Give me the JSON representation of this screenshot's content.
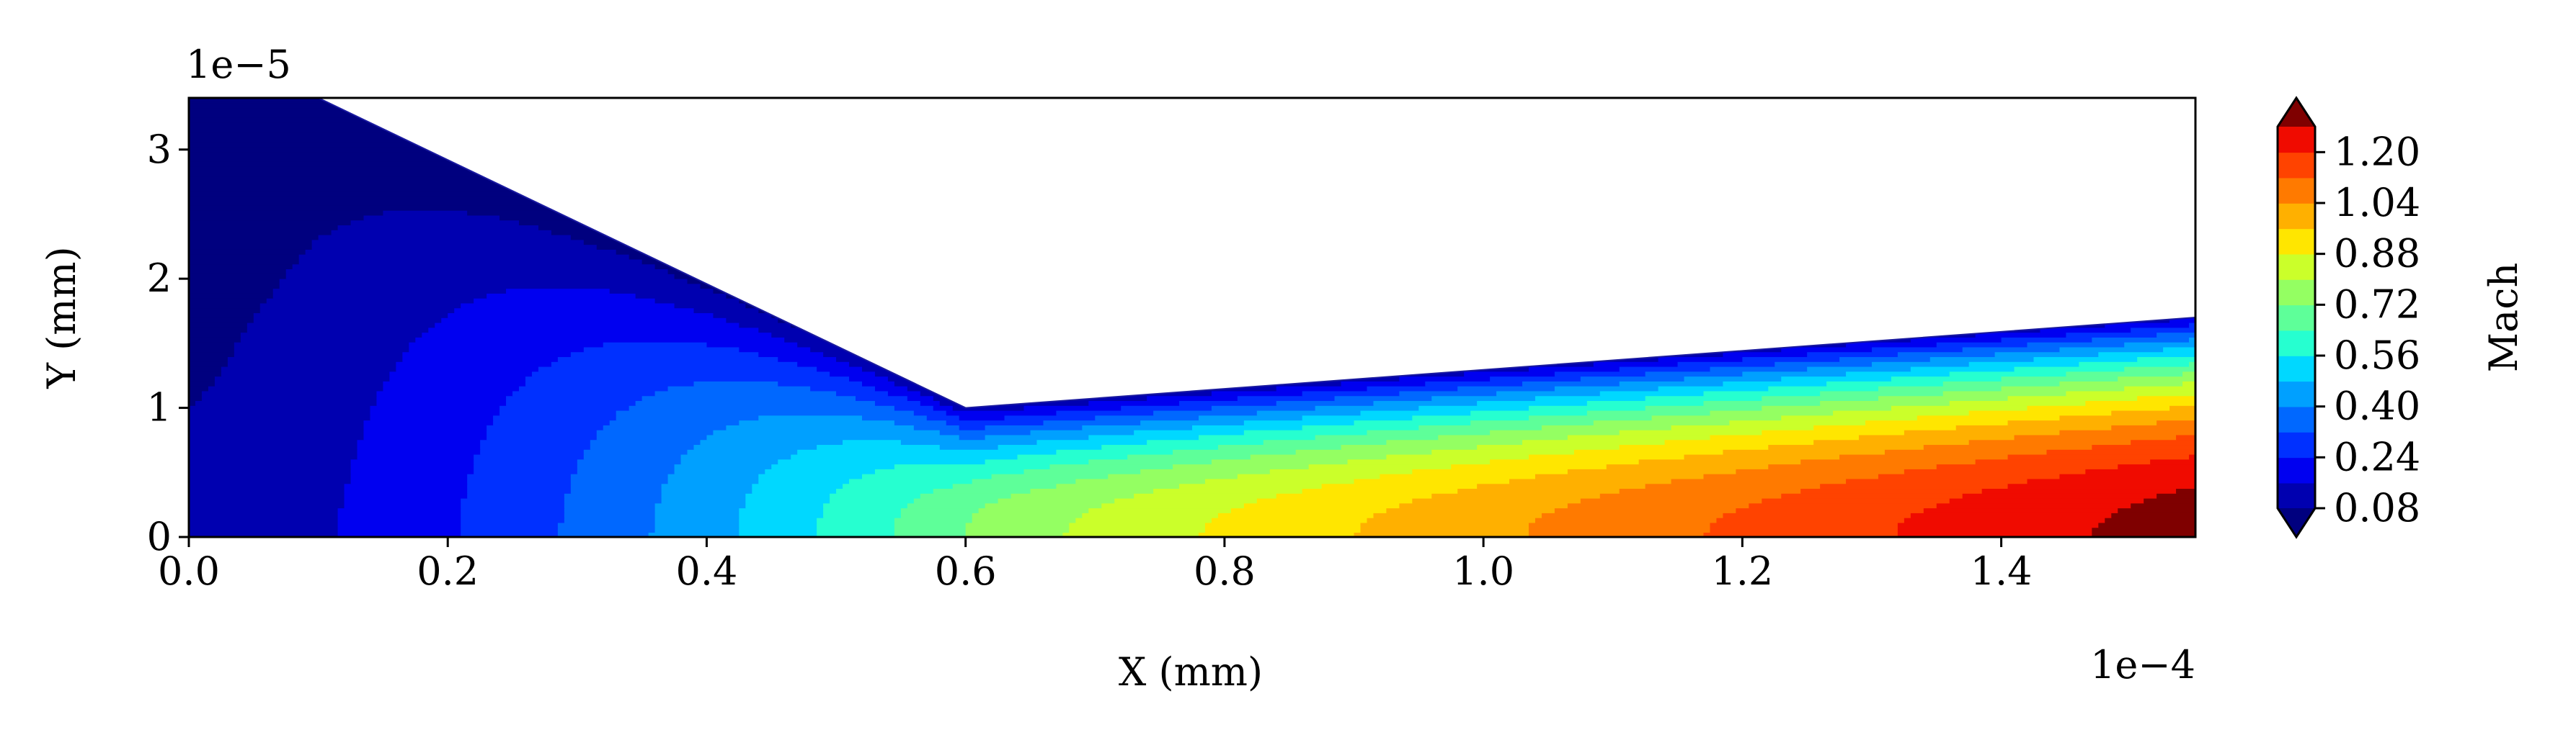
{
  "chart_data": {
    "type": "contourf",
    "xlabel": "X (mm)",
    "ylabel": "Y (mm)",
    "x_offset_label": "1e−4",
    "y_offset_label": "1e−5",
    "x_scale": 0.0001,
    "y_scale": 1e-05,
    "xlim": [
      0,
      1.55
    ],
    "ylim": [
      0,
      3.4
    ],
    "x_ticks": [
      0.0,
      0.2,
      0.4,
      0.6,
      0.8,
      1.0,
      1.2,
      1.4
    ],
    "x_tick_labels": [
      "0.0",
      "0.2",
      "0.4",
      "0.6",
      "0.8",
      "1.0",
      "1.2",
      "1.4"
    ],
    "y_ticks": [
      0,
      1,
      2,
      3
    ],
    "y_tick_labels": [
      "0",
      "1",
      "2",
      "3"
    ],
    "wall_profile": [
      [
        0.0,
        3.4
      ],
      [
        0.1,
        3.4
      ],
      [
        0.6,
        1.0
      ],
      [
        1.55,
        1.7
      ]
    ],
    "contour_levels": [
      0.08,
      0.16,
      0.24,
      0.32,
      0.4,
      0.48,
      0.56,
      0.64,
      0.72,
      0.8,
      0.88,
      0.96,
      1.04,
      1.12,
      1.2,
      1.28
    ],
    "level_colors": [
      "#00007f",
      "#0000b0",
      "#0000f0",
      "#0030ff",
      "#0068ff",
      "#00a0ff",
      "#00d8ff",
      "#26ffd0",
      "#5eff99",
      "#94ff62",
      "#cbff2a",
      "#ffe600",
      "#ffb000",
      "#ff7a00",
      "#ff4300",
      "#f00b00",
      "#a80000",
      "#7f0000"
    ],
    "colorbar": {
      "label": "Mach",
      "ticks": [
        "0.08",
        "0.24",
        "0.40",
        "0.56",
        "0.72",
        "0.88",
        "1.04",
        "1.20"
      ],
      "extend": "both"
    },
    "grid": false
  }
}
